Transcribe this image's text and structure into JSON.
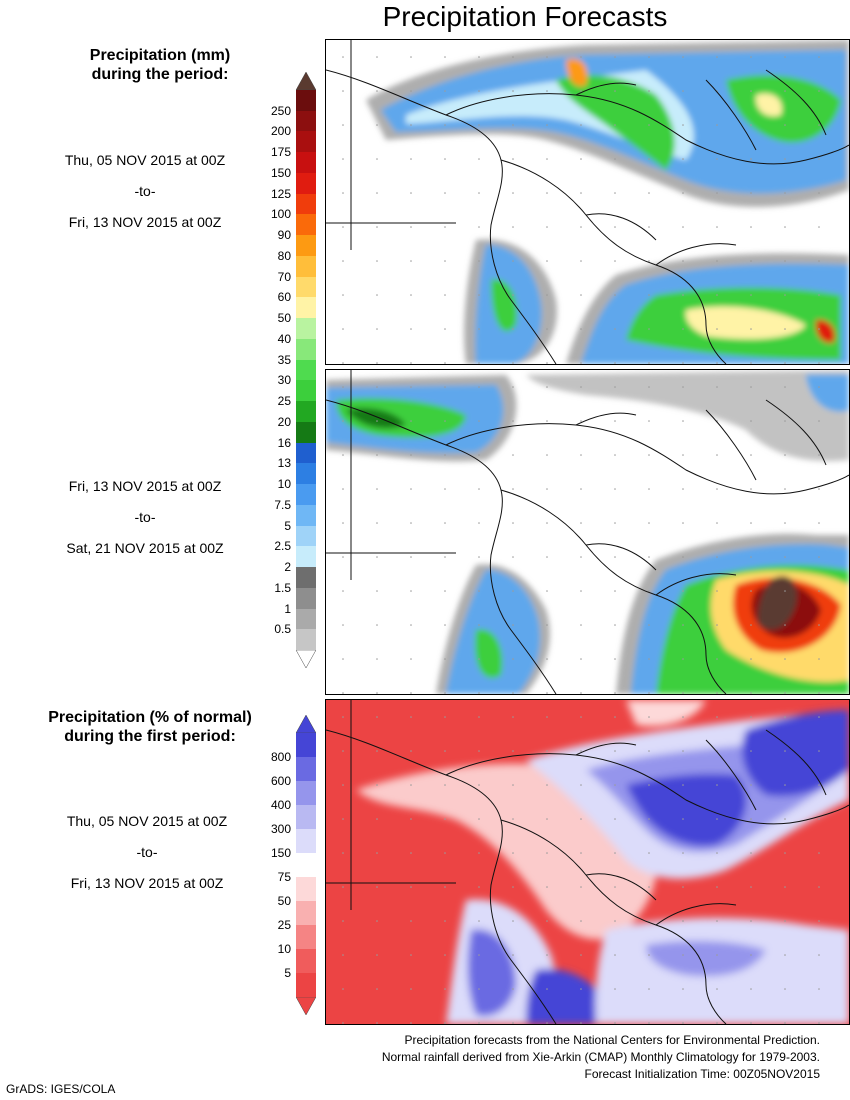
{
  "title": "Precipitation Forecasts",
  "legend_mm": {
    "title_line1": "Precipitation (mm)",
    "title_line2": "during the period:",
    "levels": [
      "250",
      "200",
      "175",
      "150",
      "125",
      "100",
      "90",
      "80",
      "70",
      "60",
      "50",
      "40",
      "35",
      "30",
      "25",
      "20",
      "16",
      "13",
      "10",
      "7.5",
      "5",
      "2.5",
      "2",
      "1.5",
      "1",
      "0.5"
    ],
    "colors": [
      "#6b0d0d",
      "#8c0f0f",
      "#a90f0f",
      "#c81010",
      "#e01c10",
      "#f03d0c",
      "#fa6a0a",
      "#fd9a12",
      "#ffbe3a",
      "#ffda6b",
      "#fff3a6",
      "#b9f3a0",
      "#88e87a",
      "#4fdb4f",
      "#3ccf3c",
      "#22a822",
      "#157a15",
      "#1f5fcf",
      "#2d7fe3",
      "#4a9bf0",
      "#6fb7f5",
      "#9fd3f8",
      "#c7ecfb",
      "#6e6e6e",
      "#8e8e8e",
      "#aaaaaa",
      "#c6c6c6"
    ],
    "top_cap_color": "#5a3a30"
  },
  "period1": {
    "start": "Thu, 05 NOV 2015 at 00Z",
    "sep": "-to-",
    "end": "Fri, 13 NOV 2015 at 00Z"
  },
  "period2": {
    "start": "Fri, 13 NOV 2015 at 00Z",
    "sep": "-to-",
    "end": "Sat, 21 NOV 2015 at 00Z"
  },
  "legend_pct": {
    "title_line1": "Precipitation (% of normal)",
    "title_line2": "during the first period:",
    "levels": [
      "800",
      "600",
      "400",
      "300",
      "150",
      "75",
      "50",
      "25",
      "10",
      "5"
    ],
    "colors": [
      "#4545d6",
      "#6a6ae2",
      "#9595ec",
      "#b9b9f2",
      "#dcdcfa",
      "#ffffff",
      "#fdd9d9",
      "#f9b0b0",
      "#f58484",
      "#f05c5c",
      "#ec4444"
    ]
  },
  "period3": {
    "start": "Thu, 05 NOV 2015 at 00Z",
    "sep": "-to-",
    "end": "Fri, 13 NOV 2015 at 00Z"
  },
  "footer": {
    "line1": "Precipitation forecasts from the National Centers for Environmental Prediction.",
    "line2": "Normal rainfall derived from Xie-Arkin (CMAP) Monthly Climatology for 1979-2003.",
    "line3": "Forecast Initialization Time: 00Z05NOV2015"
  },
  "credit": "GrADS: IGES/COLA"
}
